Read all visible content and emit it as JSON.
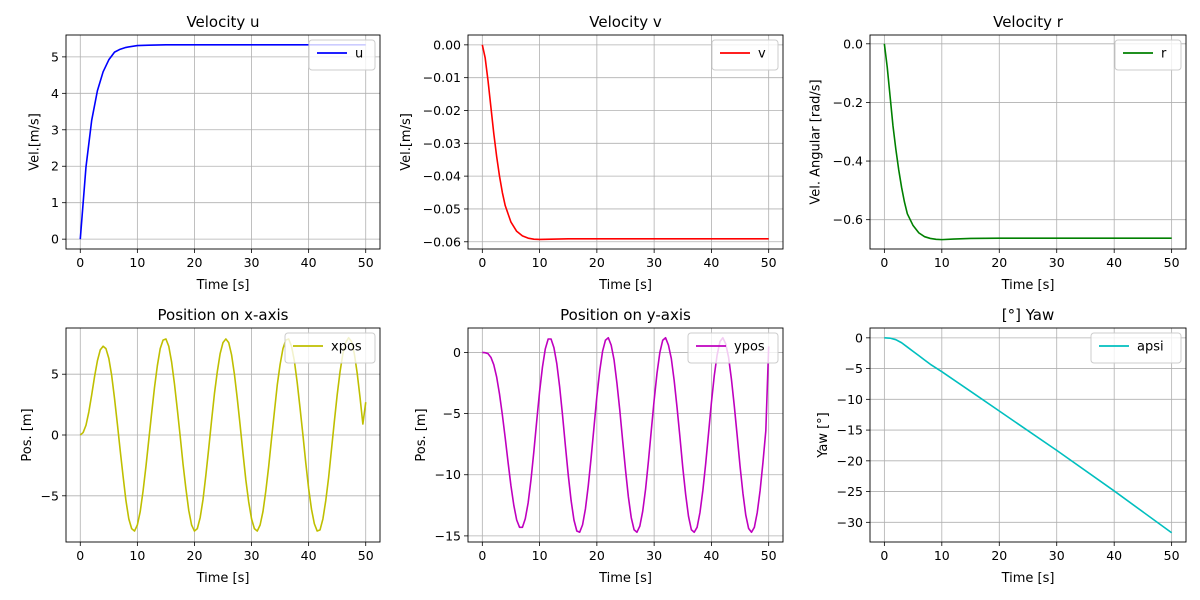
{
  "chart_data": [
    {
      "type": "line",
      "title": "Velocity u",
      "xlabel": "Time [s]",
      "ylabel": "Vel.[m/s]",
      "xlim": [
        -2.5,
        52.5
      ],
      "ylim": [
        -0.27,
        5.6
      ],
      "xticks": [
        0,
        10,
        20,
        30,
        40,
        50
      ],
      "yticks": [
        0,
        1,
        2,
        3,
        4,
        5
      ],
      "grid": true,
      "legend": "upper right",
      "series": [
        {
          "name": "u",
          "color": "#0000ff",
          "x": [
            0,
            1,
            2,
            3,
            4,
            5,
            6,
            7,
            8,
            10,
            12,
            15,
            20,
            30,
            40,
            50
          ],
          "y": [
            0,
            1.98,
            3.26,
            4.07,
            4.59,
            4.92,
            5.13,
            5.21,
            5.26,
            5.31,
            5.32,
            5.33,
            5.33,
            5.33,
            5.33,
            5.33
          ]
        }
      ]
    },
    {
      "type": "line",
      "title": "Velocity v",
      "xlabel": "Time [s]",
      "ylabel": "Vel.[m/s]",
      "xlim": [
        -2.5,
        52.5
      ],
      "ylim": [
        -0.0622,
        0.003
      ],
      "xticks": [
        0,
        10,
        20,
        30,
        40,
        50
      ],
      "yticks": [
        0.0,
        -0.01,
        -0.02,
        -0.03,
        -0.04,
        -0.05,
        -0.06
      ],
      "grid": true,
      "legend": "upper right",
      "series": [
        {
          "name": "v",
          "color": "#ff0000",
          "x": [
            0,
            0.5,
            1,
            1.5,
            2,
            2.5,
            3,
            3.5,
            4,
            5,
            6,
            7,
            8,
            9,
            10,
            12,
            15,
            20,
            30,
            40,
            50
          ],
          "y": [
            0,
            -0.004,
            -0.011,
            -0.019,
            -0.027,
            -0.034,
            -0.04,
            -0.045,
            -0.049,
            -0.054,
            -0.0568,
            -0.0582,
            -0.0589,
            -0.0592,
            -0.0593,
            -0.0592,
            -0.0591,
            -0.0591,
            -0.0591,
            -0.0591,
            -0.0591
          ]
        }
      ]
    },
    {
      "type": "line",
      "title": "Velocity r",
      "xlabel": "Time [s]",
      "ylabel": "Vel. Angular [rad/s]",
      "xlim": [
        -2.5,
        52.5
      ],
      "ylim": [
        -0.7,
        0.03
      ],
      "xticks": [
        0,
        10,
        20,
        30,
        40,
        50
      ],
      "yticks": [
        0.0,
        -0.2,
        -0.4,
        -0.6
      ],
      "grid": true,
      "legend": "upper right",
      "series": [
        {
          "name": "r",
          "color": "#008000",
          "x": [
            0,
            0.5,
            1,
            1.5,
            2,
            2.5,
            3,
            3.5,
            4,
            5,
            6,
            7,
            8,
            9,
            10,
            12,
            15,
            20,
            30,
            40,
            50
          ],
          "y": [
            0,
            -0.08,
            -0.18,
            -0.28,
            -0.36,
            -0.43,
            -0.49,
            -0.54,
            -0.58,
            -0.62,
            -0.645,
            -0.658,
            -0.664,
            -0.667,
            -0.668,
            -0.666,
            -0.664,
            -0.663,
            -0.663,
            -0.663,
            -0.663
          ]
        }
      ]
    },
    {
      "type": "line",
      "title": "Position on x-axis",
      "xlabel": "Time [s]",
      "ylabel": "Pos. [m]",
      "xlim": [
        -2.5,
        52.5
      ],
      "ylim": [
        -8.8,
        8.8
      ],
      "xticks": [
        0,
        10,
        20,
        30,
        40,
        50
      ],
      "yticks": [
        -5,
        0,
        5
      ],
      "grid": true,
      "legend": "upper right",
      "series": [
        {
          "name": "xpos",
          "color": "#bfbf00",
          "x": [
            0,
            0.5,
            1,
            1.5,
            2,
            2.5,
            3,
            3.5,
            4,
            4.5,
            5,
            5.5,
            6,
            6.5,
            7,
            7.5,
            8,
            8.5,
            9,
            9.5,
            10,
            10.5,
            11,
            11.5,
            12,
            12.5,
            13,
            13.5,
            14,
            14.5,
            15,
            15.5,
            16,
            16.5,
            17,
            17.5,
            18,
            18.5,
            19,
            19.5,
            20,
            20.5,
            21,
            21.5,
            22,
            22.5,
            23,
            23.5,
            24,
            24.5,
            25,
            25.5,
            26,
            26.5,
            27,
            27.5,
            28,
            28.5,
            29,
            29.5,
            30,
            30.5,
            31,
            31.5,
            32,
            32.5,
            33,
            33.5,
            34,
            34.5,
            35,
            35.5,
            36,
            36.5,
            37,
            37.5,
            38,
            38.5,
            39,
            39.5,
            40,
            40.5,
            41,
            41.5,
            42,
            42.5,
            43,
            43.5,
            44,
            44.5,
            45,
            45.5,
            46,
            46.5,
            47,
            47.5,
            48,
            48.5,
            49,
            49.5,
            50
          ],
          "y": [
            0,
            0.2,
            0.8,
            1.9,
            3.3,
            4.8,
            6.1,
            7.0,
            7.3,
            7.1,
            6.3,
            4.9,
            3.0,
            0.9,
            -1.3,
            -3.4,
            -5.4,
            -6.9,
            -7.7,
            -7.9,
            -7.4,
            -6.3,
            -4.6,
            -2.6,
            -0.4,
            1.8,
            3.9,
            5.7,
            7.1,
            7.8,
            7.9,
            7.3,
            6.0,
            4.2,
            2.1,
            -0.1,
            -2.4,
            -4.4,
            -6.2,
            -7.4,
            -7.9,
            -7.7,
            -6.8,
            -5.3,
            -3.3,
            -1.1,
            1.2,
            3.4,
            5.2,
            6.7,
            7.6,
            7.9,
            7.6,
            6.6,
            5.0,
            3.0,
            0.8,
            -1.5,
            -3.7,
            -5.5,
            -6.9,
            -7.7,
            -7.9,
            -7.4,
            -6.3,
            -4.6,
            -2.6,
            -0.3,
            1.9,
            4.1,
            5.8,
            7.1,
            7.8,
            7.9,
            7.3,
            6.1,
            4.3,
            2.2,
            0.0,
            -2.3,
            -4.4,
            -6.1,
            -7.3,
            -7.9,
            -7.8,
            -6.9,
            -5.4,
            -3.5,
            -1.2,
            1.1,
            3.3,
            5.2,
            6.7,
            7.6,
            8.0,
            7.7,
            6.7,
            5.1,
            3.1,
            0.9,
            2.7
          ]
        }
      ]
    },
    {
      "type": "line",
      "title": "Position on y-axis",
      "xlabel": "Time [s]",
      "ylabel": "Pos. [m]",
      "xlim": [
        -2.5,
        52.5
      ],
      "ylim": [
        -15.5,
        2.0
      ],
      "xticks": [
        0,
        10,
        20,
        30,
        40,
        50
      ],
      "yticks": [
        0,
        -5,
        -10,
        -15
      ],
      "grid": true,
      "legend": "upper right",
      "series": [
        {
          "name": "ypos",
          "color": "#bf00bf",
          "x": [
            0,
            0.5,
            1,
            1.5,
            2,
            2.5,
            3,
            3.5,
            4,
            4.5,
            5,
            5.5,
            6,
            6.5,
            7,
            7.5,
            8,
            8.5,
            9,
            9.5,
            10,
            10.5,
            11,
            11.5,
            12,
            12.5,
            13,
            13.5,
            14,
            14.5,
            15,
            15.5,
            16,
            16.5,
            17,
            17.5,
            18,
            18.5,
            19,
            19.5,
            20,
            20.5,
            21,
            21.5,
            22,
            22.5,
            23,
            23.5,
            24,
            24.5,
            25,
            25.5,
            26,
            26.5,
            27,
            27.5,
            28,
            28.5,
            29,
            29.5,
            30,
            30.5,
            31,
            31.5,
            32,
            32.5,
            33,
            33.5,
            34,
            34.5,
            35,
            35.5,
            36,
            36.5,
            37,
            37.5,
            38,
            38.5,
            39,
            39.5,
            40,
            40.5,
            41,
            41.5,
            42,
            42.5,
            43,
            43.5,
            44,
            44.5,
            45,
            45.5,
            46,
            46.5,
            47,
            47.5,
            48,
            48.5,
            49,
            49.5,
            50
          ],
          "y": [
            0,
            -0.02,
            -0.1,
            -0.4,
            -1.0,
            -2.0,
            -3.4,
            -5.1,
            -7.0,
            -9.0,
            -10.9,
            -12.5,
            -13.7,
            -14.3,
            -14.3,
            -13.6,
            -12.3,
            -10.4,
            -8.1,
            -5.6,
            -3.2,
            -1.2,
            0.3,
            1.1,
            1.1,
            0.4,
            -0.9,
            -2.8,
            -5.1,
            -7.6,
            -10.0,
            -12.1,
            -13.7,
            -14.6,
            -14.7,
            -14.1,
            -12.8,
            -10.9,
            -8.6,
            -6.1,
            -3.6,
            -1.5,
            0.1,
            1.0,
            1.2,
            0.6,
            -0.6,
            -2.5,
            -4.7,
            -7.2,
            -9.6,
            -11.8,
            -13.5,
            -14.5,
            -14.7,
            -14.2,
            -13.0,
            -11.2,
            -8.9,
            -6.4,
            -3.9,
            -1.7,
            0.0,
            1.0,
            1.2,
            0.6,
            -0.5,
            -2.3,
            -4.5,
            -6.9,
            -9.4,
            -11.6,
            -13.4,
            -14.5,
            -14.7,
            -14.3,
            -13.1,
            -11.3,
            -9.1,
            -6.6,
            -4.1,
            -1.9,
            -0.2,
            0.9,
            1.2,
            0.7,
            -0.4,
            -2.2,
            -4.4,
            -6.8,
            -9.3,
            -11.5,
            -13.3,
            -14.4,
            -14.7,
            -14.3,
            -13.1,
            -11.3,
            -9.0,
            -6.4,
            0.5
          ]
        }
      ]
    },
    {
      "type": "line",
      "title": "[°]  Yaw",
      "xlabel": "Time [s]",
      "ylabel": "Yaw [°]",
      "xlim": [
        -2.5,
        52.5
      ],
      "ylim": [
        -33.2,
        1.6
      ],
      "xticks": [
        0,
        10,
        20,
        30,
        40,
        50
      ],
      "yticks": [
        0,
        -5,
        -10,
        -15,
        -20,
        -25,
        -30
      ],
      "grid": true,
      "legend": "upper right",
      "series": [
        {
          "name": "apsi",
          "color": "#00bfbf",
          "x": [
            0,
            1,
            2,
            3,
            4,
            5,
            6,
            7,
            8,
            10,
            15,
            20,
            30,
            40,
            50
          ],
          "y": [
            0,
            -0.05,
            -0.3,
            -0.8,
            -1.5,
            -2.2,
            -2.9,
            -3.6,
            -4.3,
            -5.5,
            -8.7,
            -11.9,
            -18.3,
            -24.9,
            -31.7
          ]
        }
      ]
    }
  ]
}
